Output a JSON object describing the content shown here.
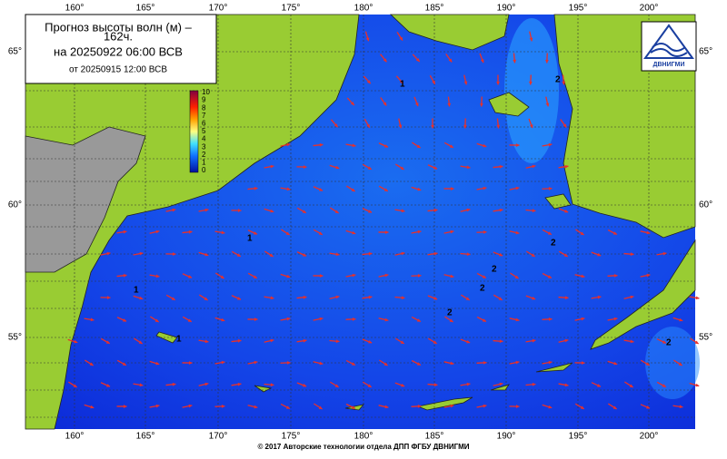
{
  "header": {
    "title": "Прогноз высоты волн (м) –",
    "lead": "162ч.",
    "valid": "на 20250922 06:00 ВСВ",
    "issued": "от 20250915 12:00 ВСВ"
  },
  "lon_labels": [
    "160°",
    "165°",
    "170°",
    "175°",
    "180°",
    "185°",
    "190°",
    "195°",
    "200°"
  ],
  "lat_labels": [
    "65°",
    "60°",
    "55°"
  ],
  "colorbar": {
    "labels": [
      "10",
      "9",
      "8",
      "7",
      "6",
      "5",
      "4",
      "3",
      "2",
      "1",
      "0"
    ]
  },
  "contour_labels": [
    "1",
    "2",
    "1",
    "2",
    "2",
    "2",
    "2",
    "1",
    "1",
    "2"
  ],
  "logo": {
    "text": "ДВНИГМИ"
  },
  "footer": "© 2017 Авторские технологии отдела ДПП ФГБУ ДВНИГМИ"
}
